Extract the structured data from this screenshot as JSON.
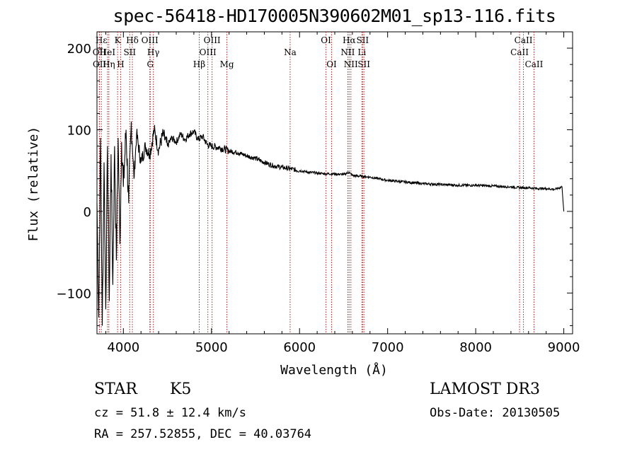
{
  "title": "spec-56418-HD170005N390602M01_sp13-116.fits",
  "chart_data": {
    "type": "line",
    "title": "spec-56418-HD170005N390602M01_sp13-116.fits",
    "xlabel": "Wavelength (Å)",
    "ylabel": "Flux (relative)",
    "xlim": [
      3700,
      9100
    ],
    "ylim": [
      -150,
      220
    ],
    "xticks": [
      4000,
      5000,
      6000,
      7000,
      8000,
      9000
    ],
    "yticks": [
      -100,
      0,
      100,
      200
    ],
    "series": [
      {
        "name": "flux",
        "x": [
          3700,
          3720,
          3740,
          3760,
          3780,
          3800,
          3820,
          3840,
          3860,
          3880,
          3900,
          3920,
          3940,
          3960,
          3980,
          4000,
          4030,
          4060,
          4090,
          4120,
          4150,
          4200,
          4250,
          4300,
          4350,
          4400,
          4450,
          4500,
          4550,
          4600,
          4650,
          4700,
          4750,
          4800,
          4850,
          4900,
          4950,
          5000,
          5100,
          5200,
          5300,
          5400,
          5500,
          5600,
          5700,
          5800,
          5900,
          6000,
          6100,
          6200,
          6300,
          6400,
          6500,
          6560,
          6600,
          6700,
          6800,
          6900,
          7000,
          7200,
          7400,
          7600,
          7800,
          8000,
          8200,
          8400,
          8500,
          8600,
          8700,
          8800,
          8900,
          8980,
          9000
        ],
        "y": [
          10,
          -130,
          90,
          -140,
          60,
          -120,
          80,
          -110,
          70,
          -90,
          80,
          -60,
          90,
          -40,
          85,
          30,
          100,
          10,
          110,
          40,
          95,
          60,
          80,
          70,
          100,
          75,
          95,
          80,
          90,
          85,
          95,
          88,
          95,
          98,
          88,
          92,
          82,
          80,
          78,
          74,
          72,
          68,
          65,
          60,
          56,
          54,
          52,
          50,
          48,
          47,
          46,
          46,
          45,
          48,
          44,
          43,
          42,
          40,
          38,
          36,
          34,
          33,
          32,
          32,
          31,
          30,
          29,
          29,
          28,
          28,
          27,
          30,
          0
        ]
      }
    ],
    "line_labels": [
      {
        "name": "OII",
        "wavelength": 3727,
        "row": 2
      },
      {
        "name": "OII",
        "wavelength": 3729,
        "row": 3
      },
      {
        "name": "Hε",
        "wavelength": 3750,
        "row": 1
      },
      {
        "name": "Hη",
        "wavelength": 3835,
        "row": 3
      },
      {
        "name": "HeI",
        "wavelength": 3820,
        "row": 2
      },
      {
        "name": "K",
        "wavelength": 3934,
        "row": 1
      },
      {
        "name": "H",
        "wavelength": 3969,
        "row": 3
      },
      {
        "name": "SII",
        "wavelength": 4072,
        "row": 2
      },
      {
        "name": "Hδ",
        "wavelength": 4102,
        "row": 1
      },
      {
        "name": "OIII",
        "wavelength": 4300,
        "row": 1
      },
      {
        "name": "Hγ",
        "wavelength": 4340,
        "row": 2
      },
      {
        "name": "G",
        "wavelength": 4305,
        "row": 3
      },
      {
        "name": "Hβ",
        "wavelength": 4861,
        "row": 3
      },
      {
        "name": "OIII",
        "wavelength": 4959,
        "row": 2
      },
      {
        "name": "OIII",
        "wavelength": 5007,
        "row": 1
      },
      {
        "name": "Mg",
        "wavelength": 5175,
        "row": 3
      },
      {
        "name": "Na",
        "wavelength": 5893,
        "row": 2
      },
      {
        "name": "OI",
        "wavelength": 6300,
        "row": 1
      },
      {
        "name": "OI",
        "wavelength": 6364,
        "row": 3
      },
      {
        "name": "Hα",
        "wavelength": 6563,
        "row": 1
      },
      {
        "name": "NII",
        "wavelength": 6548,
        "row": 2
      },
      {
        "name": "NII",
        "wavelength": 6583,
        "row": 3
      },
      {
        "name": "SII",
        "wavelength": 6716,
        "row": 1
      },
      {
        "name": "Li",
        "wavelength": 6708,
        "row": 2
      },
      {
        "name": "SII",
        "wavelength": 6731,
        "row": 3
      },
      {
        "name": "CaII",
        "wavelength": 8498,
        "row": 2
      },
      {
        "name": "CaII",
        "wavelength": 8542,
        "row": 1
      },
      {
        "name": "CaII",
        "wavelength": 8662,
        "row": 3
      }
    ]
  },
  "info": {
    "object_type": "STAR",
    "subclass": "K5",
    "cz": "cz = 51.8 ± 12.4 km/s",
    "radec": "RA = 257.52855, DEC =  40.03764",
    "survey": "LAMOST DR3",
    "obs_date": "Obs-Date: 20130505"
  },
  "colors": {
    "line_marker": "#b22222",
    "spectrum": "#000000"
  }
}
